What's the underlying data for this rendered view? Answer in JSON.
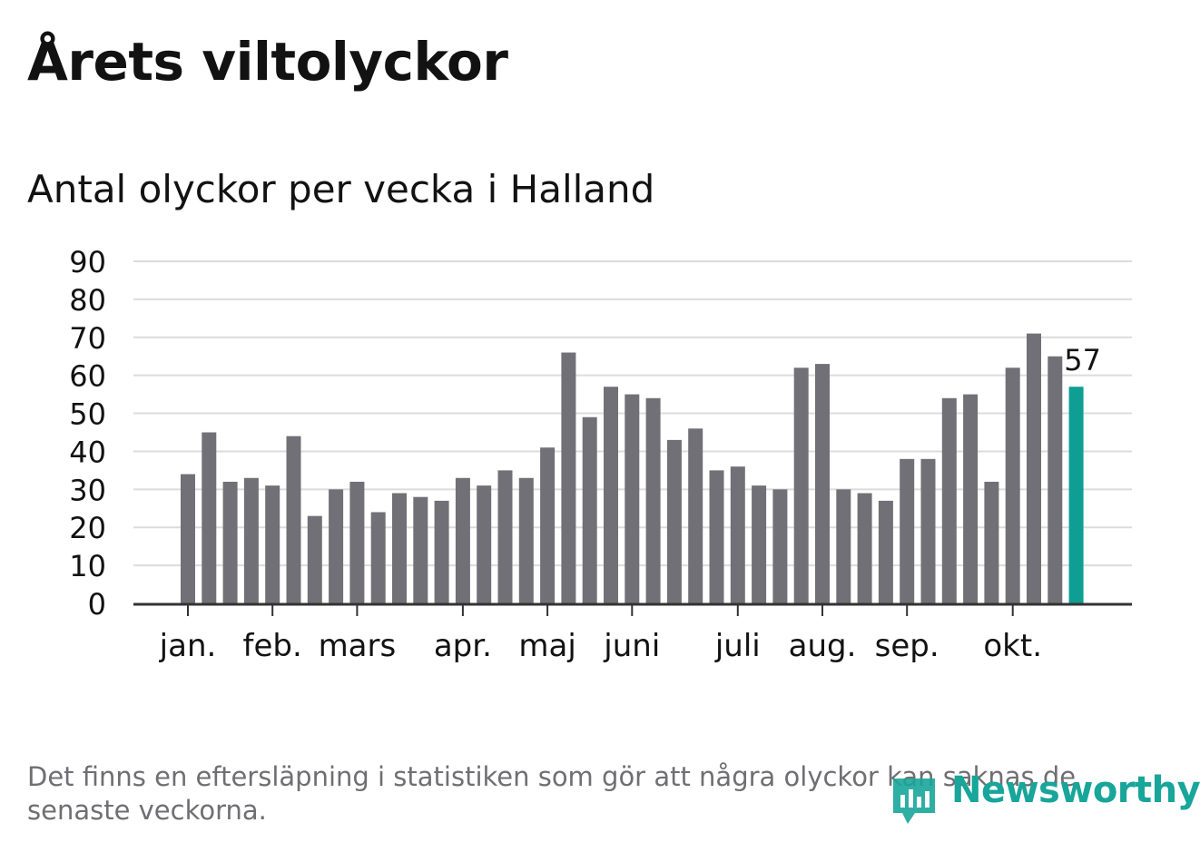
{
  "title": "Årets viltolyckor",
  "subtitle": "Antal olyckor per vecka i Halland",
  "footnote": "Det finns en eftersläpning i statistiken som gör att några olyckor kan saknas de senaste veckorna.",
  "logo_text": "Newsworthy",
  "colors": {
    "bar": "#717076",
    "highlight": "#0e9e94",
    "grid": "#dcdcdc",
    "axis": "#333333",
    "text": "#121212",
    "logo": "#18a59a"
  },
  "chart_data": {
    "type": "bar",
    "title": "Årets viltolyckor",
    "subtitle": "Antal olyckor per vecka i Halland",
    "xlabel": "",
    "ylabel": "",
    "ylim": [
      0,
      90
    ],
    "yticks": [
      0,
      10,
      20,
      30,
      40,
      50,
      60,
      70,
      80,
      90
    ],
    "grid": true,
    "month_labels": [
      {
        "label": "jan.",
        "week_index": 0.0
      },
      {
        "label": "feb.",
        "week_index": 4.0
      },
      {
        "label": "mars",
        "week_index": 8.0
      },
      {
        "label": "apr.",
        "week_index": 13.0
      },
      {
        "label": "maj",
        "week_index": 17.0
      },
      {
        "label": "juni",
        "week_index": 21.0
      },
      {
        "label": "juli",
        "week_index": 26.0
      },
      {
        "label": "aug.",
        "week_index": 30.0
      },
      {
        "label": "sep.",
        "week_index": 34.0
      },
      {
        "label": "okt.",
        "week_index": 39.0
      }
    ],
    "values": [
      34,
      45,
      32,
      33,
      31,
      44,
      23,
      30,
      32,
      24,
      29,
      28,
      27,
      33,
      31,
      35,
      33,
      41,
      66,
      49,
      57,
      55,
      54,
      43,
      46,
      35,
      36,
      31,
      30,
      62,
      63,
      30,
      29,
      27,
      38,
      38,
      54,
      55,
      32,
      62,
      71,
      65,
      57
    ],
    "highlight_index": 42,
    "highlight_label": "57"
  }
}
